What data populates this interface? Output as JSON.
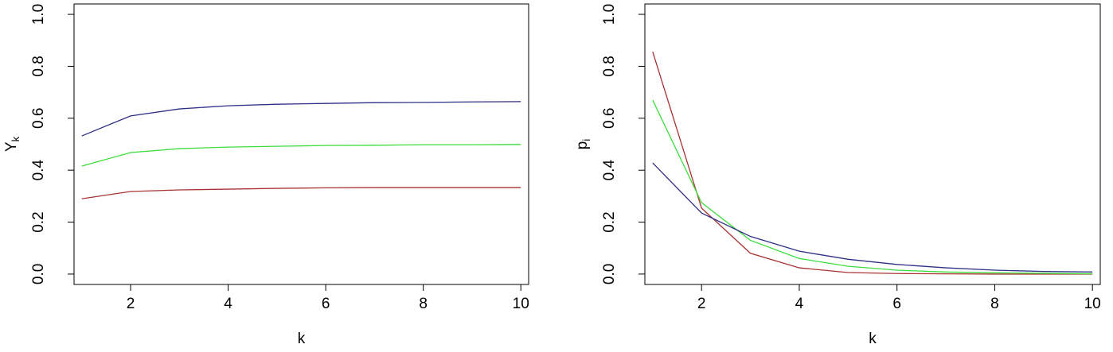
{
  "chart_data": [
    {
      "type": "line",
      "xlabel": "k",
      "ylabel": "Y",
      "ylabel_subscript": "k",
      "x": [
        1,
        2,
        3,
        4,
        5,
        6,
        7,
        8,
        9,
        10
      ],
      "xlim": [
        0.84,
        10.16
      ],
      "ylim": [
        -0.04,
        1.04
      ],
      "xticks": [
        2,
        4,
        6,
        8,
        10
      ],
      "yticks": [
        {
          "value": 0,
          "label": "0.0"
        },
        0.2,
        0.4,
        0.6,
        0.8,
        {
          "value": 1,
          "label": "1.0"
        }
      ],
      "series": [
        {
          "color": "#2e2e86",
          "values": [
            0.532,
            0.609,
            0.636,
            0.648,
            0.654,
            0.657,
            0.66,
            0.661,
            0.663,
            0.664
          ]
        },
        {
          "color": "#3ddc3d",
          "values": [
            0.416,
            0.468,
            0.483,
            0.489,
            0.492,
            0.495,
            0.496,
            0.498,
            0.498,
            0.499
          ]
        },
        {
          "color": "#a83232",
          "values": [
            0.29,
            0.318,
            0.324,
            0.327,
            0.33,
            0.332,
            0.333,
            0.333,
            0.333,
            0.333
          ]
        }
      ]
    },
    {
      "type": "line",
      "xlabel": "k",
      "ylabel": "p",
      "ylabel_subscript": "i",
      "x": [
        1,
        2,
        3,
        4,
        5,
        6,
        7,
        8,
        9,
        10
      ],
      "xlim": [
        0.84,
        10.16
      ],
      "ylim": [
        -0.04,
        1.04
      ],
      "xticks": [
        2,
        4,
        6,
        8,
        10
      ],
      "yticks": [
        {
          "value": 0,
          "label": "0.0"
        },
        0.2,
        0.4,
        0.6,
        0.8,
        {
          "value": 1,
          "label": "1.0"
        }
      ],
      "series": [
        {
          "color": "#a83232",
          "values": [
            0.856,
            0.254,
            0.08,
            0.024,
            0.006,
            0.002,
            0.001,
            0.0,
            0.0,
            0.0
          ]
        },
        {
          "color": "#3ddc3d",
          "values": [
            0.67,
            0.275,
            0.13,
            0.06,
            0.03,
            0.015,
            0.008,
            0.005,
            0.003,
            0.001
          ]
        },
        {
          "color": "#2e2e86",
          "values": [
            0.428,
            0.235,
            0.145,
            0.088,
            0.057,
            0.037,
            0.024,
            0.015,
            0.01,
            0.008
          ]
        }
      ]
    }
  ]
}
